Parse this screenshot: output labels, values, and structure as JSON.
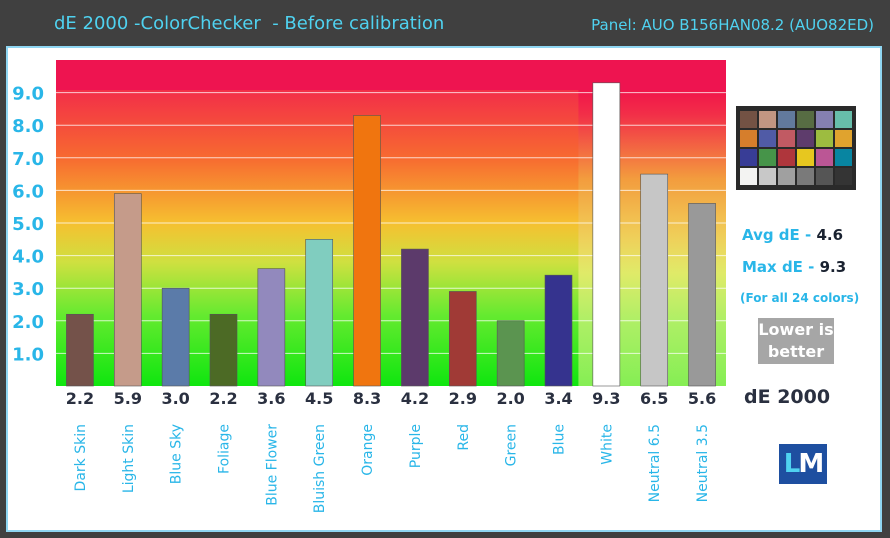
{
  "header": {
    "title": "dE 2000 -ColorChecker  - Before calibration",
    "panel": "Panel: AUO B156HAN08.2 (AUO82ED)"
  },
  "chart_data": {
    "type": "bar",
    "title": "dE 2000 -ColorChecker  - Before calibration",
    "ylabel": "",
    "xlabel": "",
    "ylim": [
      0,
      10
    ],
    "yticks": [
      1.0,
      2.0,
      3.0,
      4.0,
      5.0,
      6.0,
      7.0,
      8.0,
      9.0
    ],
    "ytick_labels": [
      "1.0",
      "2.0",
      "3.0",
      "4.0",
      "5.0",
      "6.0",
      "7.0",
      "8.0",
      "9.0"
    ],
    "grid": true,
    "categories": [
      "Dark Skin",
      "Light Skin",
      "Blue Sky",
      "Foliage",
      "Blue Flower",
      "Bluish Green",
      "Orange",
      "Purple",
      "Red",
      "Green",
      "Blue",
      "White",
      "Neutral 6.5",
      "Neutral 3.5"
    ],
    "values": [
      2.2,
      5.9,
      3.0,
      2.2,
      3.6,
      4.5,
      8.3,
      4.2,
      2.9,
      2.0,
      3.4,
      9.3,
      6.5,
      5.6
    ],
    "value_labels": [
      "2.2",
      "5.9",
      "3.0",
      "2.2",
      "3.6",
      "4.5",
      "8.3",
      "4.2",
      "2.9",
      "2.0",
      "3.4",
      "9.3",
      "6.5",
      "5.6"
    ],
    "bar_colors": [
      "#74524a",
      "#c59b8a",
      "#5b7ba9",
      "#4c6a25",
      "#9289bd",
      "#80cdbf",
      "#f0750f",
      "#5c3a6b",
      "#a03a36",
      "#5b9450",
      "#35338e",
      "#ffffff",
      "#c6c6c6",
      "#999999"
    ]
  },
  "stats": {
    "avg_label": "Avg dE",
    "avg_value": "4.6",
    "max_label": "Max dE",
    "max_value": "9.3",
    "note": "(For all 24 colors)",
    "lower_line1": "Lower is",
    "lower_line2": "better",
    "metric": "dE 2000"
  },
  "logo": {
    "l": "L",
    "m": "M"
  },
  "checker_colors": [
    [
      "#735244",
      "#c29682",
      "#627a9d",
      "#576c43",
      "#8580b1",
      "#67bdaa"
    ],
    [
      "#d67e2c",
      "#505ba6",
      "#c15a63",
      "#5e3c6c",
      "#9dbc40",
      "#e0a32e"
    ],
    [
      "#383d96",
      "#469449",
      "#af363c",
      "#e7c71f",
      "#bb5695",
      "#0885a1"
    ],
    [
      "#f3f3f2",
      "#c8c8c8",
      "#a0a0a0",
      "#7a7a7a",
      "#555555",
      "#343434"
    ]
  ]
}
